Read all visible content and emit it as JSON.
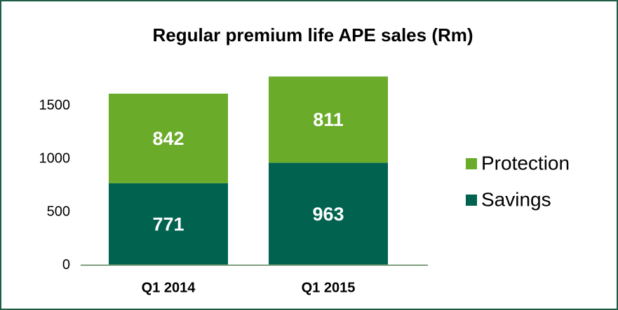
{
  "chart_data": {
    "type": "stacked_bar",
    "title": "Regular premium life APE sales (Rm)",
    "categories": [
      "Q1 2014",
      "Q1 2015"
    ],
    "series": [
      {
        "name": "Savings",
        "color": "#00624f",
        "values": [
          771,
          963
        ]
      },
      {
        "name": "Protection",
        "color": "#6aab2a",
        "values": [
          842,
          811
        ]
      }
    ],
    "ylim": [
      0,
      1800
    ],
    "yticks": [
      0,
      500,
      1000,
      1500
    ],
    "grid": false,
    "legend": "right"
  }
}
